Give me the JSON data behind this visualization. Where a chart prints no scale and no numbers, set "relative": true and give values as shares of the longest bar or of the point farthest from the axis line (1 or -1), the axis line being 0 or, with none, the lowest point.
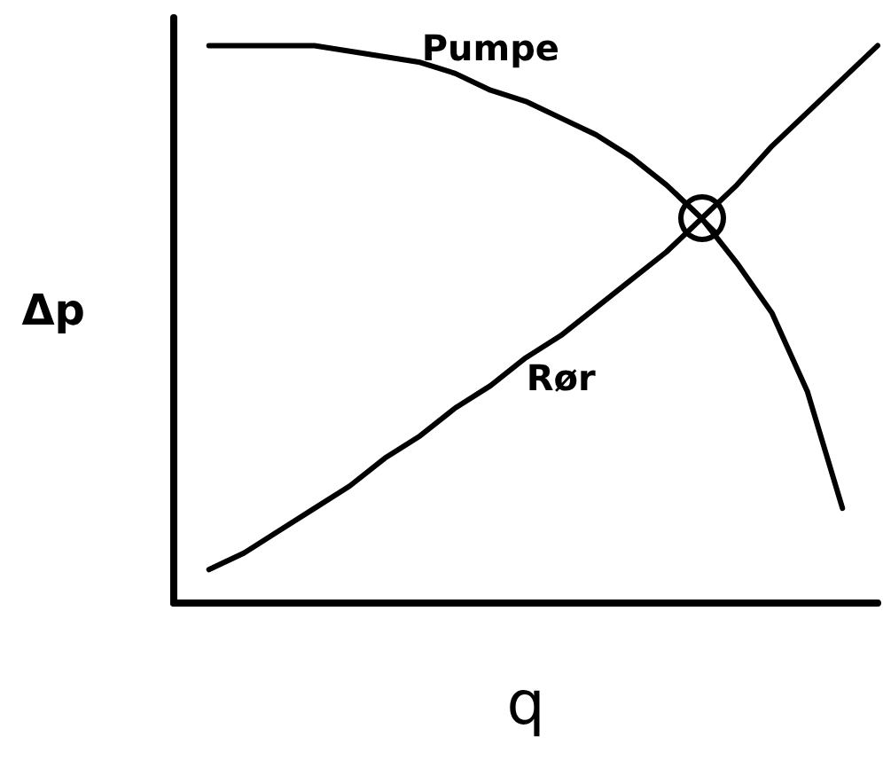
{
  "chart_data": {
    "type": "line",
    "relative": true,
    "xlabel": "q",
    "ylabel": "Δp",
    "legend": false,
    "grid": false,
    "marker": "none",
    "line_style": "solid",
    "categories": [
      null,
      null,
      null,
      null,
      null,
      null,
      null,
      null,
      null,
      null,
      null,
      null,
      null,
      null,
      null,
      null,
      null,
      null,
      null,
      null,
      null
    ],
    "series": [
      {
        "name": "Pumpe",
        "color": "#000000",
        "values": [
          null,
          1,
          1,
          1,
          1,
          0.99,
          0.98,
          0.97,
          0.95,
          0.92,
          0.9,
          0.87,
          0.84,
          0.8,
          0.75,
          0.69,
          0.61,
          0.52,
          0.38,
          0.17,
          null
        ]
      },
      {
        "name": "Rør",
        "color": "#000000",
        "values": [
          null,
          0.06,
          0.09,
          0.13,
          0.17,
          0.21,
          0.26,
          0.3,
          0.35,
          0.39,
          0.44,
          0.48,
          0.53,
          0.58,
          0.63,
          0.69,
          0.75,
          0.82,
          0.88,
          0.94,
          1
        ]
      }
    ]
  }
}
